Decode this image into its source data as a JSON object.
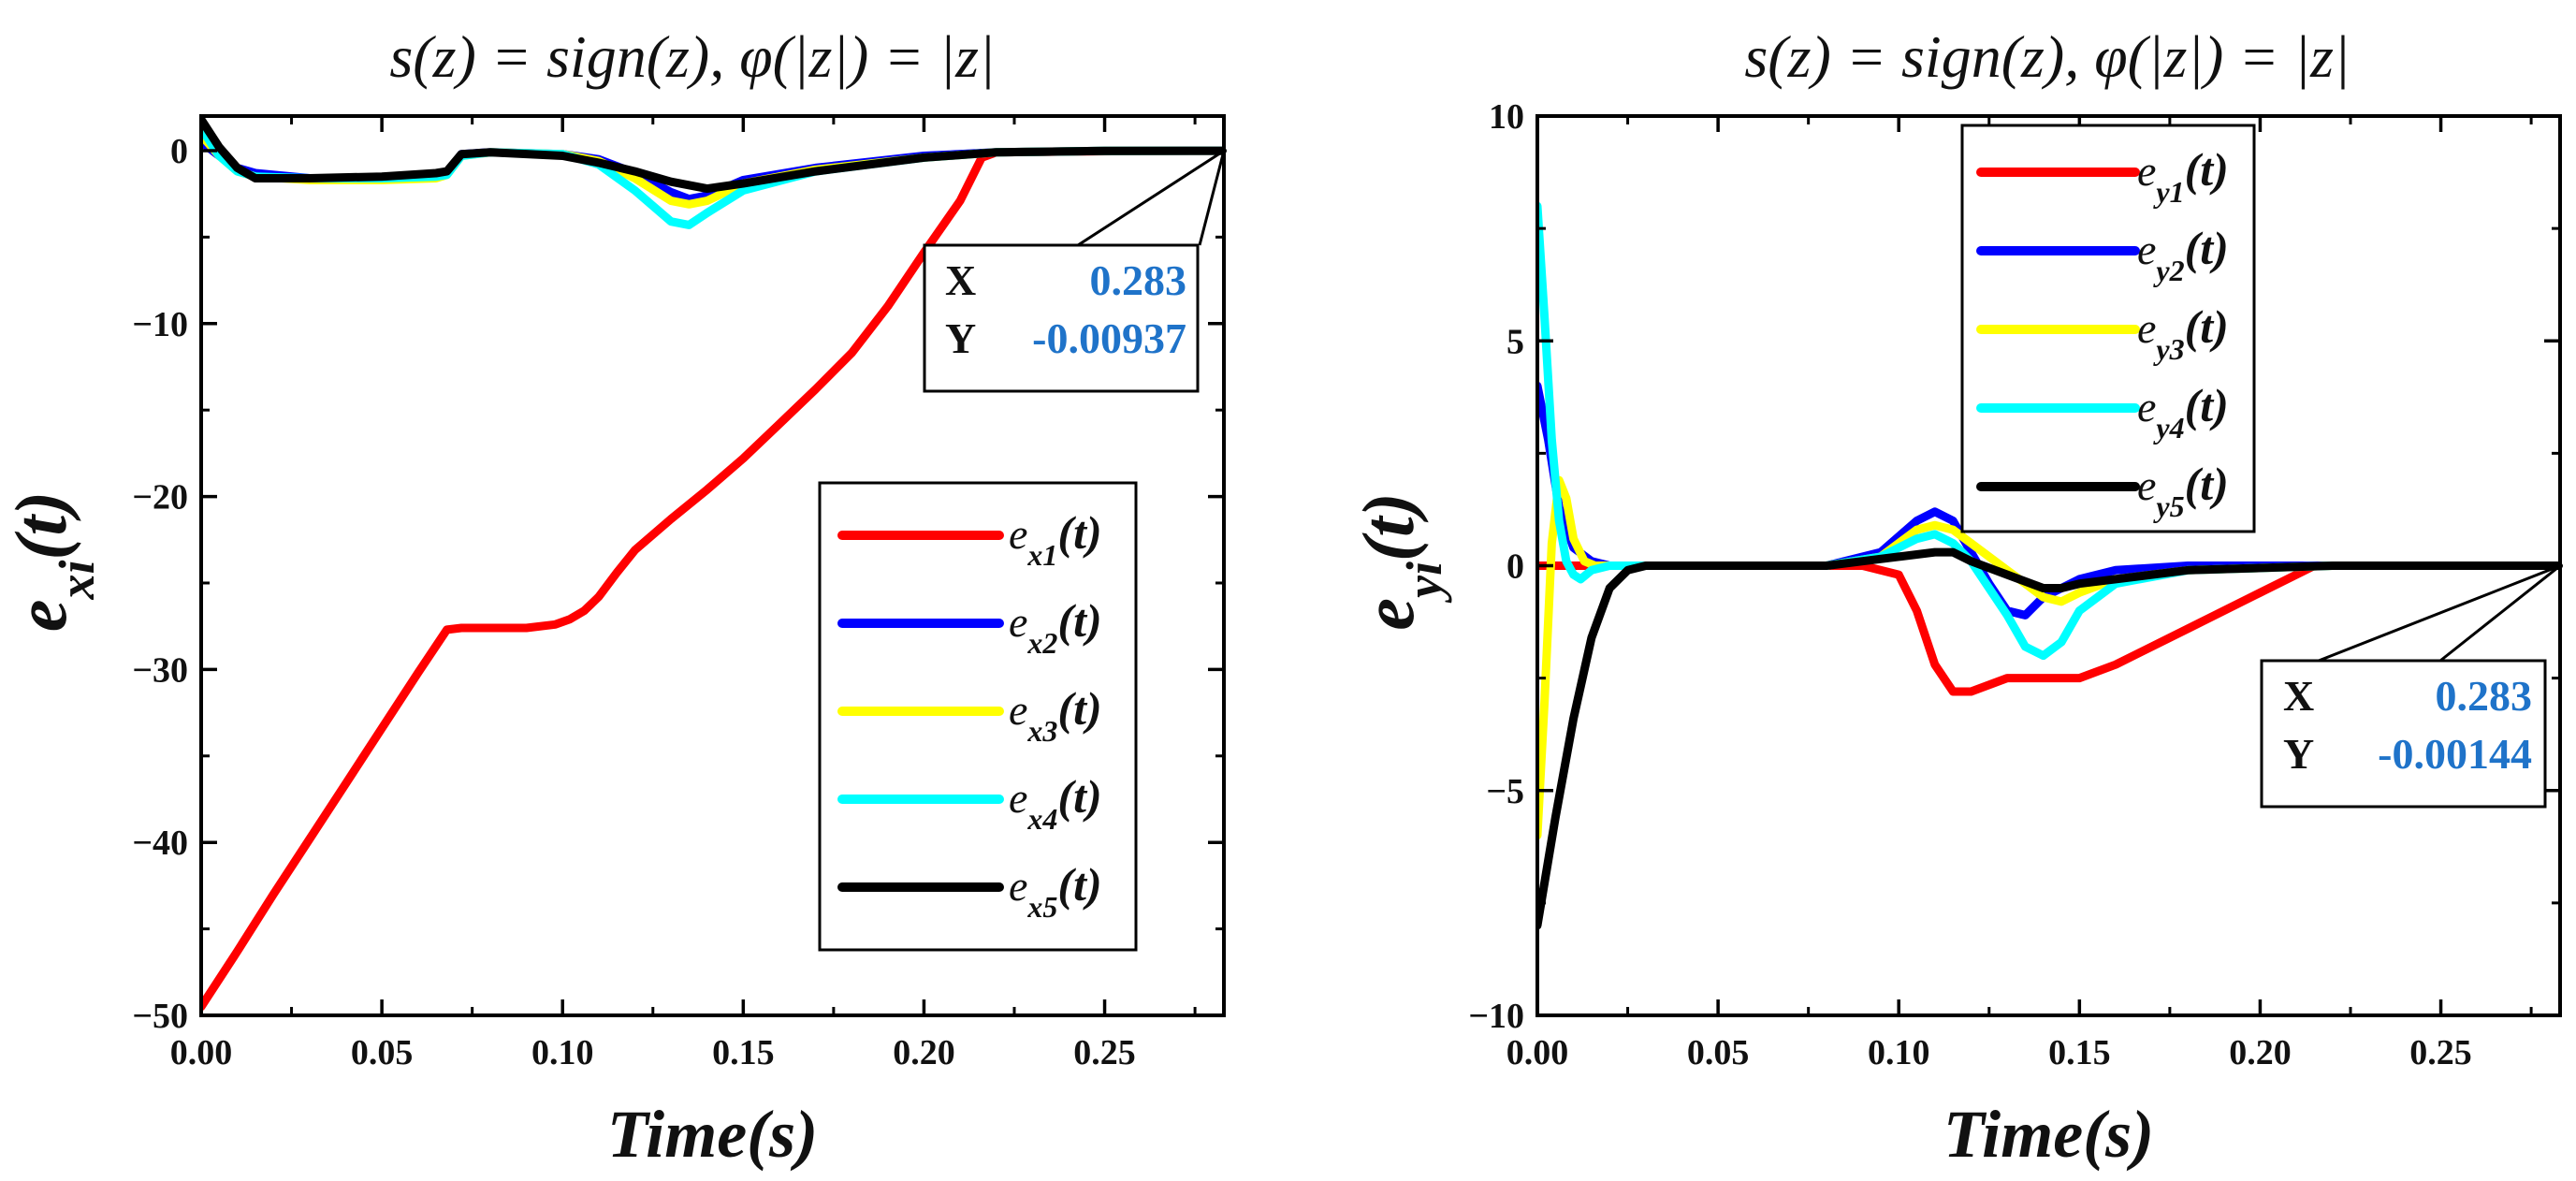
{
  "chart_data": [
    {
      "type": "line",
      "title": "s(z) = sign(z), φ(|z|) = |z|",
      "xlabel": "Time(s)",
      "ylabel": "e_xi(t)",
      "xlim": [
        0,
        0.283
      ],
      "ylim": [
        -50,
        2
      ],
      "xticks": [
        0.0,
        0.05,
        0.1,
        0.15,
        0.2,
        0.25
      ],
      "xtick_labels": [
        "0.00",
        "0.05",
        "0.10",
        "0.15",
        "0.20",
        "0.25"
      ],
      "yticks": [
        0,
        -10,
        -20,
        -30,
        -40,
        -50
      ],
      "ytick_labels": [
        "0",
        "−10",
        "−20",
        "−30",
        "−40",
        "−50"
      ],
      "legend_position": "lower-right",
      "series": [
        {
          "name": "e_x1(t)",
          "base": "e",
          "sub": "x1",
          "suffix": "(t)",
          "color": "#ff0000",
          "x": [
            0,
            0.01,
            0.02,
            0.03,
            0.04,
            0.05,
            0.06,
            0.068,
            0.072,
            0.08,
            0.09,
            0.098,
            0.102,
            0.106,
            0.11,
            0.115,
            0.12,
            0.13,
            0.14,
            0.15,
            0.16,
            0.17,
            0.18,
            0.19,
            0.2,
            0.21,
            0.216,
            0.22,
            0.24,
            0.26,
            0.283
          ],
          "y": [
            -49.5,
            -46.3,
            -43.0,
            -39.8,
            -36.6,
            -33.4,
            -30.2,
            -27.7,
            -27.6,
            -27.6,
            -27.6,
            -27.4,
            -27.1,
            -26.6,
            -25.8,
            -24.4,
            -23.1,
            -21.3,
            -19.6,
            -17.8,
            -15.8,
            -13.8,
            -11.7,
            -9.0,
            -5.9,
            -2.9,
            -0.4,
            -0.1,
            -0.05,
            -0.02,
            -0.01
          ]
        },
        {
          "name": "e_x2(t)",
          "base": "e",
          "sub": "x2",
          "suffix": "(t)",
          "color": "#0000ff",
          "x": [
            0,
            0.005,
            0.01,
            0.015,
            0.03,
            0.05,
            0.065,
            0.068,
            0.072,
            0.08,
            0.1,
            0.11,
            0.12,
            0.13,
            0.135,
            0.14,
            0.15,
            0.17,
            0.2,
            0.22,
            0.25,
            0.283
          ],
          "y": [
            0.5,
            -0.3,
            -1.0,
            -1.3,
            -1.6,
            -1.6,
            -1.4,
            -1.3,
            -0.2,
            -0.1,
            -0.2,
            -0.5,
            -1.3,
            -2.4,
            -2.8,
            -2.6,
            -1.7,
            -1.0,
            -0.3,
            -0.1,
            -0.02,
            -0.01
          ]
        },
        {
          "name": "e_x3(t)",
          "base": "e",
          "sub": "x3",
          "suffix": "(t)",
          "color": "#ffff00",
          "x": [
            0,
            0.005,
            0.01,
            0.015,
            0.03,
            0.05,
            0.065,
            0.068,
            0.072,
            0.08,
            0.1,
            0.11,
            0.12,
            0.13,
            0.135,
            0.14,
            0.15,
            0.17,
            0.2,
            0.22,
            0.25,
            0.283
          ],
          "y": [
            0.9,
            -0.3,
            -1.2,
            -1.5,
            -1.7,
            -1.7,
            -1.6,
            -1.4,
            -0.3,
            -0.1,
            -0.2,
            -0.6,
            -1.6,
            -2.9,
            -3.1,
            -2.9,
            -1.9,
            -1.1,
            -0.4,
            -0.1,
            -0.02,
            -0.01
          ]
        },
        {
          "name": "e_x4(t)",
          "base": "e",
          "sub": "x4",
          "suffix": "(t)",
          "color": "#00ffff",
          "x": [
            0,
            0.005,
            0.01,
            0.015,
            0.03,
            0.05,
            0.065,
            0.068,
            0.072,
            0.08,
            0.1,
            0.11,
            0.12,
            0.13,
            0.135,
            0.14,
            0.15,
            0.17,
            0.2,
            0.22,
            0.25,
            0.283
          ],
          "y": [
            1.3,
            -0.3,
            -1.2,
            -1.5,
            -1.6,
            -1.6,
            -1.5,
            -1.4,
            -0.3,
            -0.1,
            -0.2,
            -0.8,
            -2.3,
            -4.1,
            -4.3,
            -3.6,
            -2.3,
            -1.2,
            -0.4,
            -0.1,
            -0.02,
            -0.01
          ]
        },
        {
          "name": "e_x5(t)",
          "base": "e",
          "sub": "x5",
          "suffix": "(t)",
          "color": "#000000",
          "x": [
            0,
            0.005,
            0.01,
            0.015,
            0.03,
            0.05,
            0.065,
            0.068,
            0.072,
            0.08,
            0.1,
            0.11,
            0.12,
            0.13,
            0.14,
            0.15,
            0.17,
            0.2,
            0.22,
            0.25,
            0.283
          ],
          "y": [
            1.8,
            0.2,
            -1.0,
            -1.6,
            -1.6,
            -1.5,
            -1.3,
            -1.2,
            -0.2,
            -0.1,
            -0.3,
            -0.7,
            -1.2,
            -1.8,
            -2.2,
            -1.9,
            -1.2,
            -0.4,
            -0.1,
            -0.02,
            -0.01
          ]
        }
      ],
      "annotation": {
        "x_label": "X",
        "x_value": "0.283",
        "y_label": "Y",
        "y_value": "-0.00937",
        "point_x": 0.283,
        "point_y": -0.00937
      }
    },
    {
      "type": "line",
      "title": "s(z) = sign(z), φ(|z|) = |z|",
      "xlabel": "Time(s)",
      "ylabel": "e_yi(t)",
      "xlim": [
        0,
        0.283
      ],
      "ylim": [
        -10,
        10
      ],
      "xticks": [
        0.0,
        0.05,
        0.1,
        0.15,
        0.2,
        0.25
      ],
      "xtick_labels": [
        "0.00",
        "0.05",
        "0.10",
        "0.15",
        "0.20",
        "0.25"
      ],
      "yticks": [
        10,
        5,
        0,
        -5,
        -10
      ],
      "ytick_labels": [
        "10",
        "5",
        "0",
        "−5",
        "−10"
      ],
      "legend_position": "top-center",
      "series": [
        {
          "name": "e_y1(t)",
          "base": "e",
          "sub": "y1",
          "suffix": "(t)",
          "color": "#ff0000",
          "x": [
            0,
            0.05,
            0.09,
            0.1,
            0.105,
            0.11,
            0.115,
            0.12,
            0.13,
            0.14,
            0.15,
            0.16,
            0.18,
            0.2,
            0.215,
            0.283
          ],
          "y": [
            0,
            0,
            0,
            -0.2,
            -1.0,
            -2.2,
            -2.8,
            -2.8,
            -2.5,
            -2.5,
            -2.5,
            -2.2,
            -1.4,
            -0.6,
            0,
            0
          ]
        },
        {
          "name": "e_y2(t)",
          "base": "e",
          "sub": "y2",
          "suffix": "(t)",
          "color": "#0000ff",
          "x": [
            0,
            0.003,
            0.006,
            0.01,
            0.015,
            0.02,
            0.03,
            0.05,
            0.08,
            0.095,
            0.105,
            0.11,
            0.115,
            0.12,
            0.125,
            0.13,
            0.135,
            0.14,
            0.15,
            0.16,
            0.18,
            0.22,
            0.283
          ],
          "y": [
            4.0,
            2.8,
            1.3,
            0.4,
            0.1,
            0,
            0,
            0,
            0,
            0.3,
            1.0,
            1.2,
            1.0,
            0.3,
            -0.4,
            -1.0,
            -1.1,
            -0.7,
            -0.3,
            -0.1,
            0,
            0,
            0
          ]
        },
        {
          "name": "e_y3(t)",
          "base": "e",
          "sub": "y3",
          "suffix": "(t)",
          "color": "#ffff00",
          "x": [
            0,
            0.002,
            0.004,
            0.006,
            0.008,
            0.01,
            0.013,
            0.016,
            0.02,
            0.03,
            0.05,
            0.08,
            0.095,
            0.105,
            0.11,
            0.115,
            0.12,
            0.13,
            0.14,
            0.145,
            0.15,
            0.16,
            0.18,
            0.22,
            0.283
          ],
          "y": [
            -6.0,
            -3.0,
            0.5,
            1.9,
            1.5,
            0.6,
            0.1,
            0,
            0,
            0,
            0,
            0,
            0.2,
            0.8,
            0.9,
            0.8,
            0.5,
            -0.1,
            -0.7,
            -0.8,
            -0.6,
            -0.3,
            -0.1,
            0,
            0
          ]
        },
        {
          "name": "e_y4(t)",
          "base": "e",
          "sub": "y4",
          "suffix": "(t)",
          "color": "#00ffff",
          "x": [
            0,
            0.002,
            0.004,
            0.006,
            0.008,
            0.01,
            0.012,
            0.015,
            0.02,
            0.03,
            0.05,
            0.08,
            0.095,
            0.105,
            0.11,
            0.115,
            0.12,
            0.13,
            0.135,
            0.14,
            0.145,
            0.15,
            0.16,
            0.18,
            0.22,
            0.283
          ],
          "y": [
            8.0,
            5.5,
            2.8,
            1.0,
            0.1,
            -0.2,
            -0.3,
            -0.1,
            0,
            0,
            0,
            0,
            0.2,
            0.6,
            0.7,
            0.5,
            0.1,
            -1.1,
            -1.8,
            -2.0,
            -1.7,
            -1.0,
            -0.4,
            -0.1,
            0,
            0
          ]
        },
        {
          "name": "e_y5(t)",
          "base": "e",
          "sub": "y5",
          "suffix": "(t)",
          "color": "#000000",
          "x": [
            0,
            0.005,
            0.01,
            0.015,
            0.02,
            0.025,
            0.03,
            0.05,
            0.08,
            0.09,
            0.1,
            0.11,
            0.115,
            0.12,
            0.13,
            0.14,
            0.145,
            0.15,
            0.16,
            0.18,
            0.22,
            0.283
          ],
          "y": [
            -8.0,
            -5.6,
            -3.4,
            -1.6,
            -0.5,
            -0.1,
            0,
            0,
            0,
            0.1,
            0.2,
            0.3,
            0.3,
            0.1,
            -0.2,
            -0.5,
            -0.5,
            -0.4,
            -0.3,
            -0.1,
            0,
            0
          ]
        }
      ],
      "annotation": {
        "x_label": "X",
        "x_value": "0.283",
        "y_label": "Y",
        "y_value": "-0.00144",
        "point_x": 0.283,
        "point_y": -0.00144
      }
    }
  ]
}
